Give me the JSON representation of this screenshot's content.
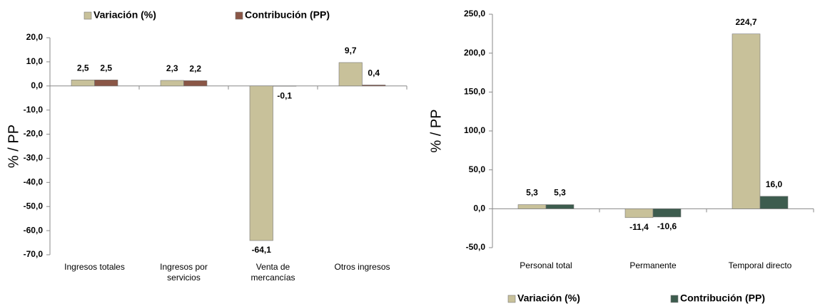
{
  "chart_data": [
    {
      "type": "bar",
      "y_label": "% / PP",
      "legend": "top",
      "categories": [
        "Ingresos totales",
        "Ingresos por servicios",
        "Venta de mercancías",
        "Otros ingresos"
      ],
      "series": [
        {
          "name": "Variación (%)",
          "color": "#c8c19a",
          "values": [
            2.5,
            2.3,
            -64.1,
            9.7
          ],
          "value_labels": [
            "2,5",
            "2,3",
            "-64,1",
            "9,7"
          ]
        },
        {
          "name": "Contribución (PP)",
          "color": "#8a5646",
          "values": [
            2.5,
            2.2,
            -0.1,
            0.4
          ],
          "value_labels": [
            "2,5",
            "2,2",
            "-0,1",
            "0,4"
          ]
        }
      ],
      "ylim": [
        -70,
        20
      ],
      "yticks": [
        {
          "value": -70,
          "label": "-70,0"
        },
        {
          "value": -60,
          "label": "-60,0"
        },
        {
          "value": -50,
          "label": "-50,0"
        },
        {
          "value": -40,
          "label": "-40,0"
        },
        {
          "value": -30,
          "label": "-30,0"
        },
        {
          "value": -20,
          "label": "-20,0"
        },
        {
          "value": -10,
          "label": "-10,0"
        },
        {
          "value": 0,
          "label": "0,0"
        },
        {
          "value": 10,
          "label": "10,0"
        },
        {
          "value": 20,
          "label": "20,0"
        }
      ]
    },
    {
      "type": "bar",
      "y_label": "% / PP",
      "legend": "bottom",
      "categories": [
        "Personal total",
        "Permanente",
        "Temporal directo"
      ],
      "series": [
        {
          "name": "Variación (%)",
          "color": "#c8c19a",
          "values": [
            5.3,
            -11.4,
            224.7
          ],
          "value_labels": [
            "5,3",
            "-11,4",
            "224,7"
          ]
        },
        {
          "name": "Contribución (PP)",
          "color": "#3d5c4e",
          "values": [
            5.3,
            -10.6,
            16.0
          ],
          "value_labels": [
            "5,3",
            "-10,6",
            "16,0"
          ]
        }
      ],
      "ylim": [
        -50,
        250
      ],
      "yticks": [
        {
          "value": -50,
          "label": "-50,0"
        },
        {
          "value": 0,
          "label": "0,0"
        },
        {
          "value": 50,
          "label": "50,0"
        },
        {
          "value": 100,
          "label": "100,0"
        },
        {
          "value": 150,
          "label": "150,0"
        },
        {
          "value": 200,
          "label": "200,0"
        },
        {
          "value": 250,
          "label": "250,0"
        }
      ]
    }
  ]
}
